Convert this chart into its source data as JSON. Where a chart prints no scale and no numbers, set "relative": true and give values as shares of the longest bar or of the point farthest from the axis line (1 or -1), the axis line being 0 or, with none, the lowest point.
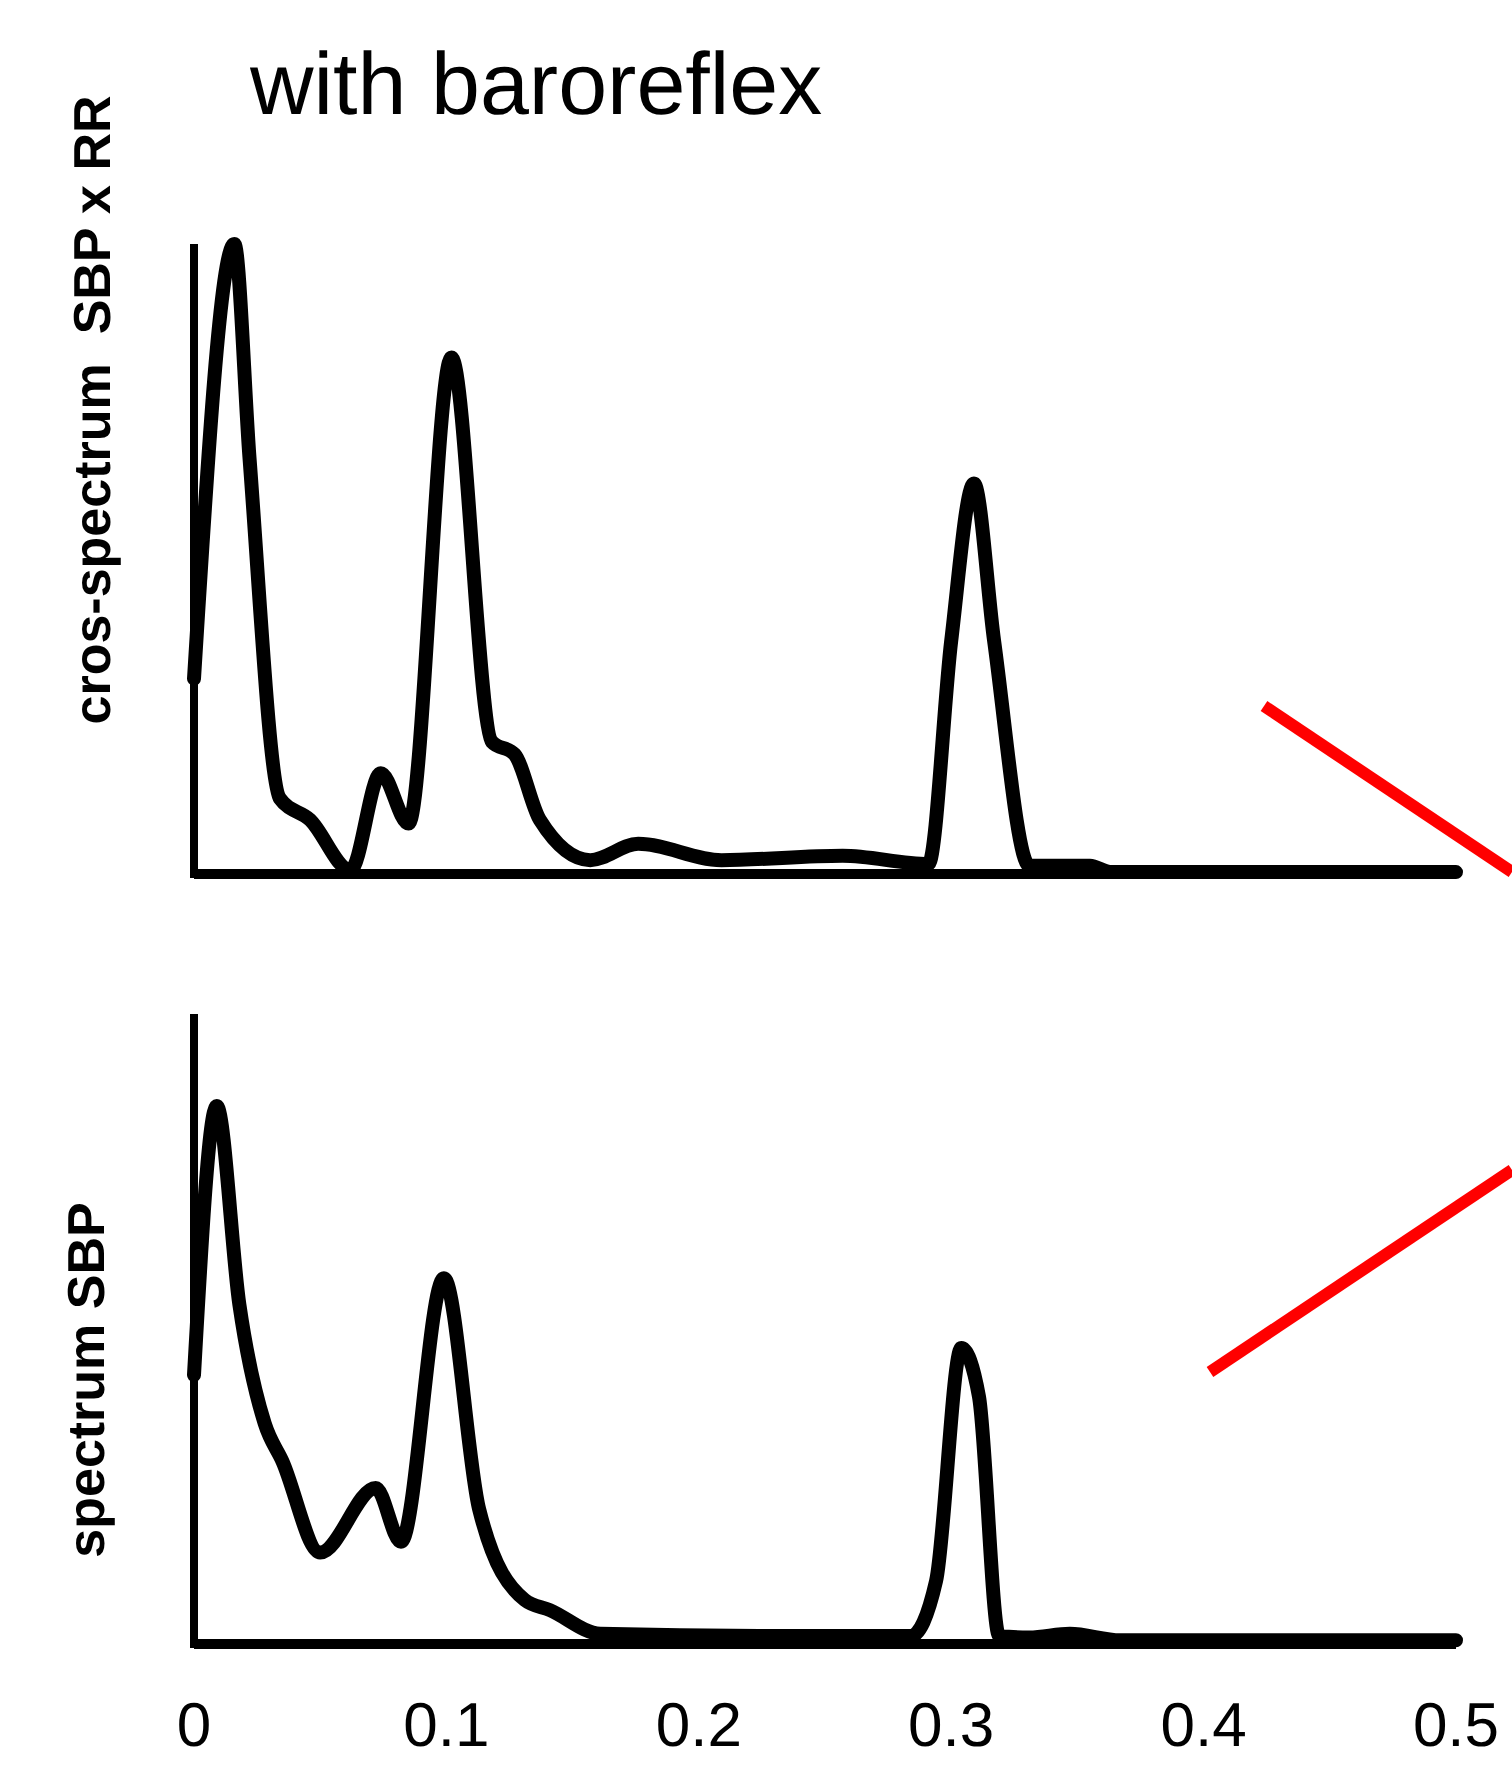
{
  "chart_data": [
    {
      "type": "line",
      "title": "with baroreflex",
      "ylabel": "cros-spectrum  SBP x RR",
      "relative": true,
      "xlim": [
        0,
        0.5
      ],
      "tick_labels": false,
      "marker": "none",
      "line_style": "solid",
      "x": [
        0,
        0.016,
        0.022,
        0.034,
        0.046,
        0.062,
        0.074,
        0.085,
        0.102,
        0.118,
        0.127,
        0.137,
        0.157,
        0.176,
        0.209,
        0.257,
        0.291,
        0.3,
        0.309,
        0.317,
        0.331,
        0.355,
        0.363,
        0.5
      ],
      "series": [
        {
          "color": "#000000",
          "values": [
            0.31,
            1,
            0.66,
            0.12,
            0.086,
            0.006,
            0.16,
            0.08,
            0.82,
            0.21,
            0.19,
            0.086,
            0.022,
            0.048,
            0.022,
            0.029,
            0.016,
            0.37,
            0.62,
            0.37,
            0.013,
            0.013,
            0.003,
            0.003
          ]
        }
      ]
    },
    {
      "type": "line",
      "ylabel": "spectrum SBP",
      "relative": true,
      "xlim": [
        0,
        0.5
      ],
      "xticks": [
        0,
        0.1,
        0.2,
        0.3,
        0.4,
        0.5
      ],
      "tick_labels": "x",
      "marker": "none",
      "line_style": "solid",
      "x": [
        0,
        0.009,
        0.018,
        0.028,
        0.035,
        0.05,
        0.072,
        0.082,
        0.099,
        0.113,
        0.131,
        0.141,
        0.161,
        0.224,
        0.284,
        0.294,
        0.304,
        0.311,
        0.319,
        0.331,
        0.347,
        0.367,
        0.5
      ],
      "series": [
        {
          "color": "#000000",
          "values": [
            0.5,
            1,
            0.63,
            0.41,
            0.34,
            0.17,
            0.29,
            0.19,
            0.68,
            0.25,
            0.082,
            0.063,
            0.019,
            0.015,
            0.015,
            0.117,
            0.55,
            0.46,
            0.015,
            0.012,
            0.019,
            0.007,
            0.007
          ]
        }
      ]
    }
  ]
}
